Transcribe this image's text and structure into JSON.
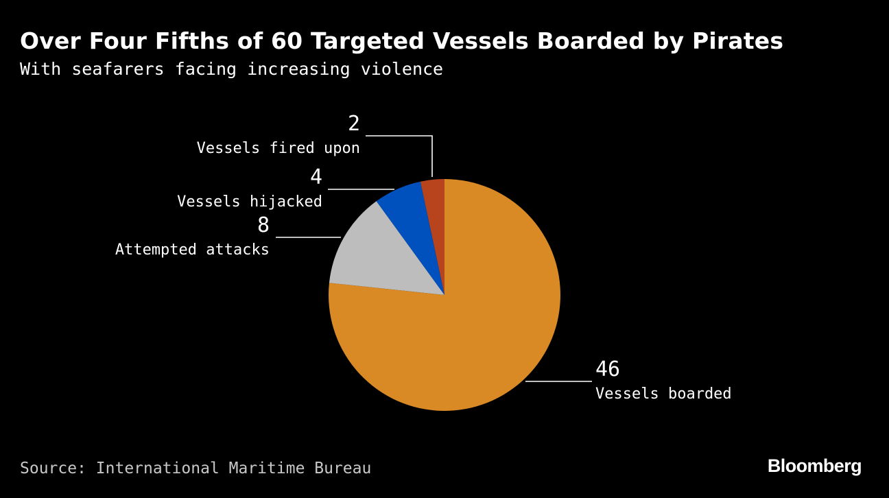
{
  "header": {
    "title": "Over Four Fifths of 60 Targeted Vessels Boarded by Pirates",
    "subtitle": "With seafarers facing increasing violence"
  },
  "footer": {
    "source": "Source: International Maritime Bureau",
    "brand": "Bloomberg"
  },
  "chart_data": {
    "type": "pie",
    "total": 60,
    "start": "12 o'clock, clockwise",
    "slices": [
      {
        "label": "Vessels boarded",
        "value": 46,
        "display": "46",
        "color": "#D98A25"
      },
      {
        "label": "Attempted attacks",
        "value": 8,
        "display": "8",
        "color": "#BDBDBD"
      },
      {
        "label": "Vessels hijacked",
        "value": 4,
        "display": "4",
        "color": "#0050BE"
      },
      {
        "label": "Vessels fired upon",
        "value": 2,
        "display": "2",
        "color": "#B8441E"
      }
    ]
  }
}
